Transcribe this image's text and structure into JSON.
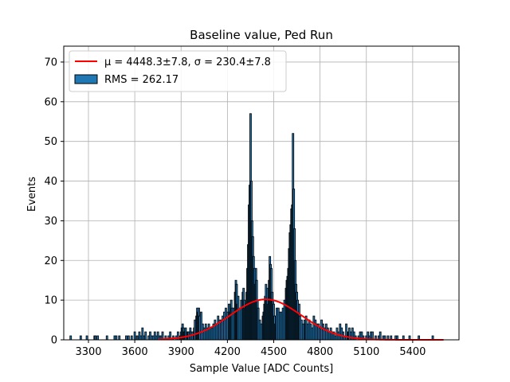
{
  "chart_data": {
    "type": "bar",
    "title": "Baseline value, Ped Run",
    "xlabel": "Sample Value [ADC Counts]",
    "ylabel": "Events",
    "xlim": [
      3140,
      5700
    ],
    "ylim": [
      0,
      74
    ],
    "grid": true,
    "legend_position": "top-left",
    "xticks": [
      3300,
      3600,
      3900,
      4200,
      4500,
      4800,
      5100,
      5400
    ],
    "yticks": [
      0,
      10,
      20,
      30,
      40,
      50,
      60,
      70
    ],
    "legend": {
      "fit_label": "μ = 4448.3±7.8, σ = 230.4±7.8",
      "hist_label": "RMS = 262.17"
    },
    "fit": {
      "mu": 4448.3,
      "mu_err": 7.8,
      "sigma": 230.4,
      "sigma_err": 7.8,
      "amplitude": 10.2,
      "x_range": [
        3750,
        5600
      ],
      "color": "#ff0000"
    },
    "histogram": {
      "fill_color": "#1f77b4",
      "edge_color": "#000000",
      "bins": [
        [
          3185,
          1
        ],
        [
          3250,
          1
        ],
        [
          3290,
          1
        ],
        [
          3340,
          1
        ],
        [
          3345,
          1
        ],
        [
          3360,
          1
        ],
        [
          3420,
          1
        ],
        [
          3470,
          1
        ],
        [
          3480,
          1
        ],
        [
          3500,
          1
        ],
        [
          3545,
          1
        ],
        [
          3560,
          1
        ],
        [
          3580,
          1
        ],
        [
          3600,
          2
        ],
        [
          3615,
          1
        ],
        [
          3630,
          2
        ],
        [
          3640,
          1
        ],
        [
          3650,
          3
        ],
        [
          3660,
          1
        ],
        [
          3670,
          2
        ],
        [
          3690,
          1
        ],
        [
          3700,
          2
        ],
        [
          3710,
          1
        ],
        [
          3720,
          1
        ],
        [
          3730,
          2
        ],
        [
          3740,
          1
        ],
        [
          3750,
          2
        ],
        [
          3760,
          1
        ],
        [
          3770,
          1
        ],
        [
          3780,
          2
        ],
        [
          3800,
          1
        ],
        [
          3820,
          1
        ],
        [
          3830,
          2
        ],
        [
          3850,
          1
        ],
        [
          3870,
          1
        ],
        [
          3880,
          2
        ],
        [
          3895,
          1
        ],
        [
          3900,
          2
        ],
        [
          3905,
          3
        ],
        [
          3910,
          4
        ],
        [
          3915,
          3
        ],
        [
          3920,
          2
        ],
        [
          3925,
          2
        ],
        [
          3930,
          3
        ],
        [
          3940,
          2
        ],
        [
          3945,
          2
        ],
        [
          3950,
          2
        ],
        [
          3960,
          3
        ],
        [
          3965,
          2
        ],
        [
          3975,
          2
        ],
        [
          3985,
          3
        ],
        [
          3990,
          5
        ],
        [
          4000,
          6
        ],
        [
          4005,
          8
        ],
        [
          4010,
          7
        ],
        [
          4015,
          8
        ],
        [
          4020,
          6
        ],
        [
          4030,
          7
        ],
        [
          4040,
          4
        ],
        [
          4050,
          3
        ],
        [
          4060,
          4
        ],
        [
          4070,
          3
        ],
        [
          4080,
          4
        ],
        [
          4090,
          3
        ],
        [
          4100,
          3
        ],
        [
          4110,
          4
        ],
        [
          4120,
          5
        ],
        [
          4130,
          4
        ],
        [
          4140,
          6
        ],
        [
          4150,
          5
        ],
        [
          4160,
          5
        ],
        [
          4170,
          6
        ],
        [
          4180,
          7
        ],
        [
          4190,
          8
        ],
        [
          4200,
          7
        ],
        [
          4210,
          9
        ],
        [
          4215,
          7
        ],
        [
          4220,
          9
        ],
        [
          4225,
          10
        ],
        [
          4230,
          8
        ],
        [
          4240,
          8
        ],
        [
          4250,
          12
        ],
        [
          4255,
          15
        ],
        [
          4260,
          14
        ],
        [
          4265,
          9
        ],
        [
          4270,
          11
        ],
        [
          4280,
          8
        ],
        [
          4290,
          10
        ],
        [
          4300,
          12
        ],
        [
          4305,
          13
        ],
        [
          4310,
          10
        ],
        [
          4315,
          8
        ],
        [
          4320,
          9
        ],
        [
          4325,
          12
        ],
        [
          4330,
          18
        ],
        [
          4335,
          24
        ],
        [
          4340,
          34
        ],
        [
          4345,
          39
        ],
        [
          4350,
          57
        ],
        [
          4355,
          40
        ],
        [
          4360,
          30
        ],
        [
          4365,
          26
        ],
        [
          4370,
          21
        ],
        [
          4375,
          18
        ],
        [
          4380,
          14
        ],
        [
          4385,
          18
        ],
        [
          4390,
          15
        ],
        [
          4395,
          10
        ],
        [
          4400,
          8
        ],
        [
          4410,
          5
        ],
        [
          4420,
          4
        ],
        [
          4430,
          6
        ],
        [
          4435,
          7
        ],
        [
          4440,
          9
        ],
        [
          4445,
          11
        ],
        [
          4450,
          14
        ],
        [
          4455,
          10
        ],
        [
          4460,
          13
        ],
        [
          4465,
          9
        ],
        [
          4470,
          15
        ],
        [
          4475,
          21
        ],
        [
          4480,
          19
        ],
        [
          4485,
          18
        ],
        [
          4490,
          12
        ],
        [
          4495,
          10
        ],
        [
          4500,
          9
        ],
        [
          4505,
          6
        ],
        [
          4510,
          4
        ],
        [
          4515,
          6
        ],
        [
          4520,
          8
        ],
        [
          4530,
          8
        ],
        [
          4540,
          7
        ],
        [
          4550,
          7
        ],
        [
          4560,
          8
        ],
        [
          4570,
          10
        ],
        [
          4580,
          13
        ],
        [
          4585,
          15
        ],
        [
          4590,
          16
        ],
        [
          4595,
          18
        ],
        [
          4600,
          23
        ],
        [
          4605,
          27
        ],
        [
          4610,
          29
        ],
        [
          4615,
          33
        ],
        [
          4620,
          34
        ],
        [
          4625,
          52
        ],
        [
          4630,
          38
        ],
        [
          4635,
          28
        ],
        [
          4640,
          20
        ],
        [
          4645,
          14
        ],
        [
          4650,
          12
        ],
        [
          4655,
          10
        ],
        [
          4660,
          7
        ],
        [
          4665,
          9
        ],
        [
          4670,
          6
        ],
        [
          4680,
          5
        ],
        [
          4690,
          4
        ],
        [
          4700,
          5
        ],
        [
          4705,
          4
        ],
        [
          4710,
          6
        ],
        [
          4720,
          4
        ],
        [
          4730,
          5
        ],
        [
          4740,
          4
        ],
        [
          4750,
          3
        ],
        [
          4760,
          6
        ],
        [
          4770,
          5
        ],
        [
          4780,
          4
        ],
        [
          4790,
          4
        ],
        [
          4800,
          3
        ],
        [
          4810,
          5
        ],
        [
          4820,
          4
        ],
        [
          4830,
          3
        ],
        [
          4840,
          4
        ],
        [
          4850,
          3
        ],
        [
          4860,
          2
        ],
        [
          4870,
          3
        ],
        [
          4880,
          2
        ],
        [
          4890,
          2
        ],
        [
          4900,
          1
        ],
        [
          4910,
          3
        ],
        [
          4920,
          2
        ],
        [
          4930,
          4
        ],
        [
          4940,
          3
        ],
        [
          4950,
          2
        ],
        [
          4960,
          1
        ],
        [
          4970,
          4
        ],
        [
          4980,
          2
        ],
        [
          4985,
          2
        ],
        [
          4990,
          3
        ],
        [
          5000,
          2
        ],
        [
          5010,
          3
        ],
        [
          5020,
          2
        ],
        [
          5030,
          1
        ],
        [
          5050,
          1
        ],
        [
          5060,
          2
        ],
        [
          5070,
          2
        ],
        [
          5080,
          1
        ],
        [
          5100,
          1
        ],
        [
          5110,
          2
        ],
        [
          5120,
          1
        ],
        [
          5130,
          2
        ],
        [
          5140,
          2
        ],
        [
          5160,
          1
        ],
        [
          5180,
          1
        ],
        [
          5190,
          2
        ],
        [
          5210,
          1
        ],
        [
          5220,
          1
        ],
        [
          5240,
          1
        ],
        [
          5260,
          1
        ],
        [
          5290,
          1
        ],
        [
          5300,
          1
        ],
        [
          5340,
          1
        ],
        [
          5380,
          1
        ],
        [
          5440,
          1
        ],
        [
          5530,
          1
        ]
      ]
    }
  }
}
